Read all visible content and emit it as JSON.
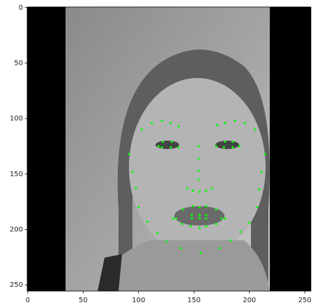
{
  "chart_data": {
    "type": "scatter",
    "x": [
      91.3,
      94.5,
      97.6,
      100,
      108,
      117,
      125,
      138,
      156,
      173,
      183,
      192,
      200,
      207,
      209,
      211,
      214,
      103,
      112,
      121,
      129,
      136,
      171,
      178,
      187,
      196,
      205,
      154,
      154,
      154,
      154,
      144,
      149,
      155,
      161,
      166,
      118,
      122,
      130,
      136,
      129,
      121,
      170,
      178,
      185,
      191,
      185,
      177,
      131,
      140,
      149,
      155,
      161,
      170,
      178,
      170,
      161,
      155,
      147,
      139,
      134,
      148,
      155,
      161,
      175,
      161,
      155,
      148
    ],
    "values": [
      132,
      148,
      163,
      180,
      193,
      203,
      211,
      217,
      221,
      217,
      210,
      202,
      194,
      180,
      164,
      148,
      132,
      110,
      104,
      102,
      104,
      107,
      106,
      104,
      102,
      104,
      110,
      125,
      136,
      147,
      155,
      163,
      165,
      166,
      165,
      163,
      125,
      121,
      121,
      126,
      126,
      126,
      125,
      121,
      121,
      125,
      126,
      126,
      190,
      182,
      179,
      180,
      179,
      182,
      190,
      195,
      197,
      199,
      197,
      195,
      190,
      187,
      187,
      187,
      190,
      190,
      190,
      190
    ],
    "color": "#00ff00",
    "xlim": [
      -0.5,
      255.5
    ],
    "ylim": [
      255.5,
      -0.5
    ],
    "xticks": [
      0,
      50,
      100,
      150,
      200,
      250
    ],
    "yticks": [
      0,
      50,
      100,
      150,
      200,
      250
    ]
  }
}
